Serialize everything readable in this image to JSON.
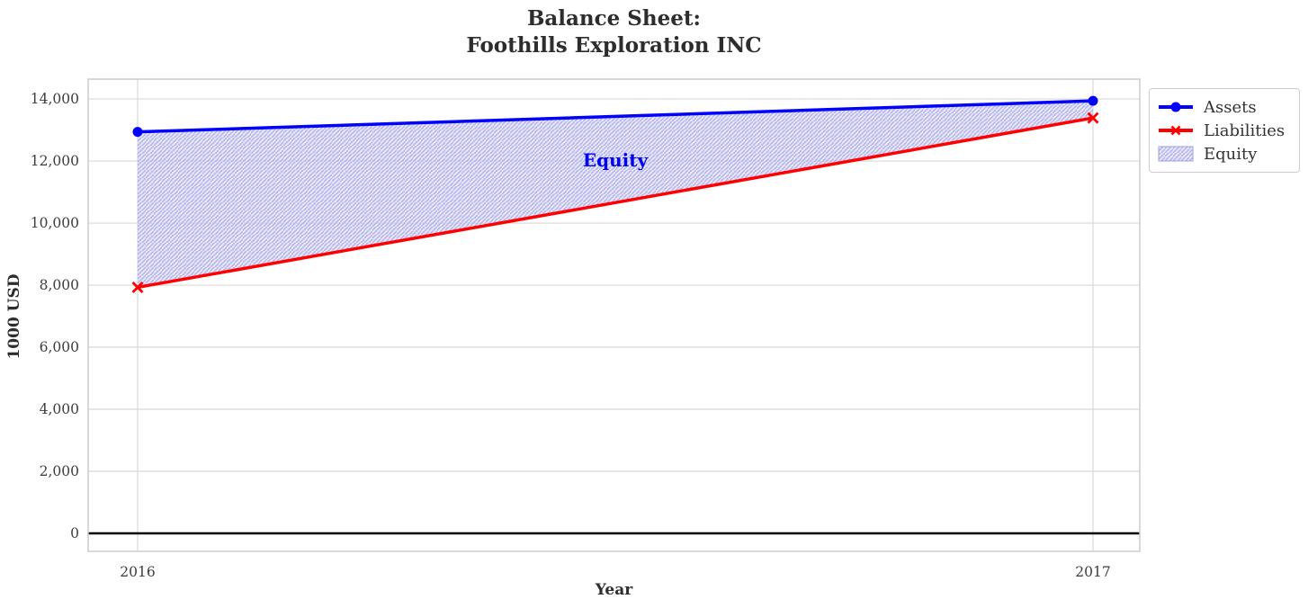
{
  "title": {
    "line1": "Balance Sheet:",
    "line2": "Foothills Exploration INC"
  },
  "chart_data": {
    "type": "line",
    "x": [
      2016,
      2017
    ],
    "series": [
      {
        "name": "Assets",
        "values": [
          12940,
          13940
        ],
        "color": "#0000ff",
        "marker": "circle"
      },
      {
        "name": "Liabilities",
        "values": [
          7930,
          13390
        ],
        "color": "#ff0000",
        "marker": "x"
      }
    ],
    "fill_between": {
      "name": "Equity",
      "upper_series": "Assets",
      "lower_series": "Liabilities",
      "band_values": [
        5010,
        550
      ],
      "facecolor": "#d2d2f6",
      "hatch": "/",
      "hatch_color": "#9f9fe8"
    },
    "annotation": {
      "text": "Equity",
      "x": 2016.5,
      "y": 12030,
      "color": "#0000f0"
    },
    "xlabel": "Year",
    "ylabel": "1000 USD",
    "xticks": [
      2016,
      2017
    ],
    "xtick_labels": [
      "2016",
      "2017"
    ],
    "yticks": [
      0,
      2000,
      4000,
      6000,
      8000,
      10000,
      12000,
      14000
    ],
    "ytick_labels": [
      "0",
      "2,000",
      "4,000",
      "6,000",
      "8,000",
      "10,000",
      "12,000",
      "14,000"
    ],
    "xlim": [
      2015.948,
      2017.049
    ],
    "ylim": [
      -580,
      14640
    ],
    "grid": true,
    "zero_line": true,
    "zero_line_color": "#000000",
    "grid_color": "#d8d8d8",
    "spine_color": "#cccccc",
    "tick_color": "#3d3d3d",
    "legend_position": "top-right-outside",
    "legend_entries": [
      "Assets",
      "Liabilities",
      "Equity"
    ]
  }
}
